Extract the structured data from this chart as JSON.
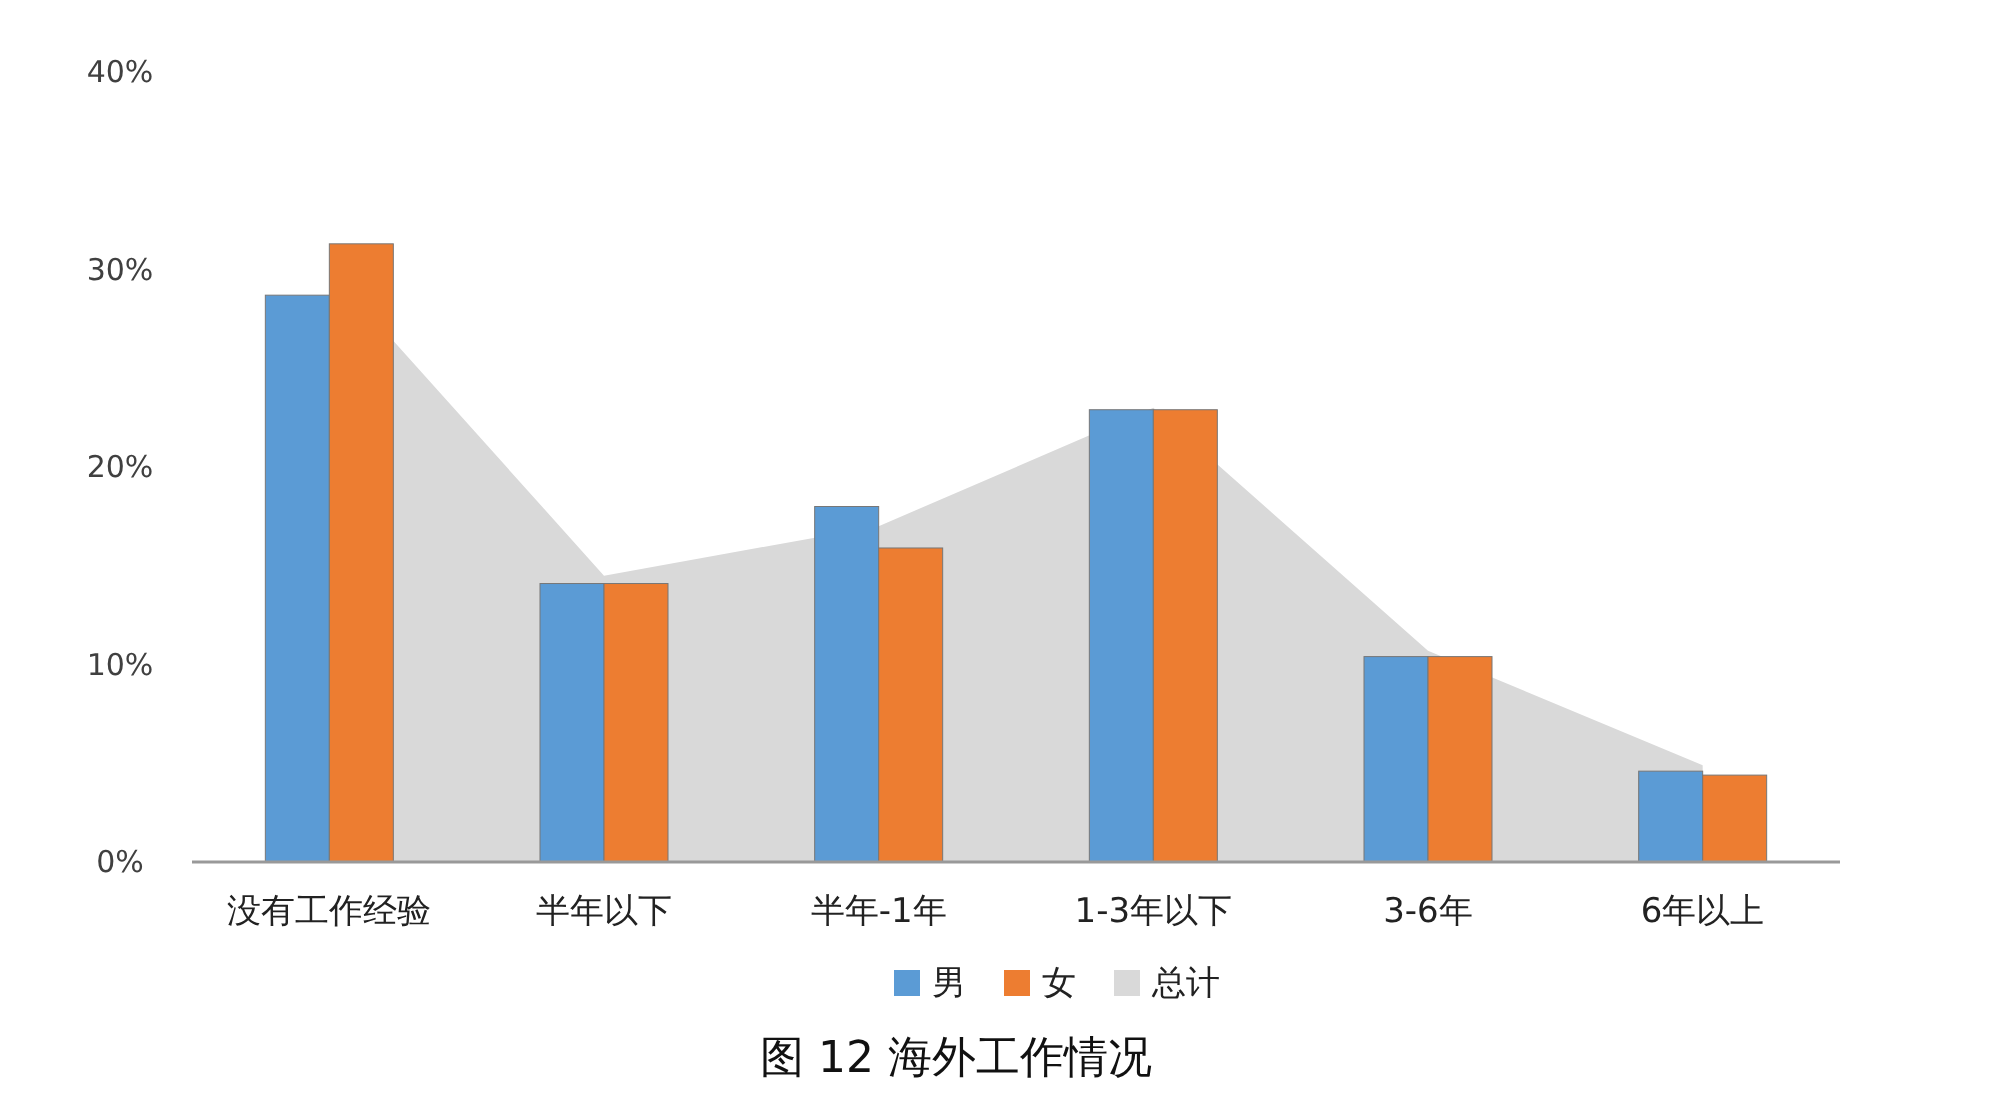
{
  "chart_data": {
    "type": "bar",
    "title": "图 12 海外工作情况",
    "categories": [
      "没有工作经验",
      "半年以下",
      "半年-1年",
      "1-3年以下",
      "3-6年",
      "6年以上"
    ],
    "series": [
      {
        "name": "男",
        "color": "#5b9bd5",
        "values": [
          28.7,
          14.1,
          18.0,
          22.9,
          10.4,
          4.6
        ]
      },
      {
        "name": "女",
        "color": "#ed7d31",
        "values": [
          31.3,
          14.1,
          15.9,
          22.9,
          10.4,
          4.4
        ]
      },
      {
        "name": "总计",
        "type": "area",
        "color": "#d9d9d9",
        "values": [
          30.0,
          14.5,
          17.0,
          23.0,
          10.7,
          4.9
        ]
      }
    ],
    "ylim": [
      0,
      40
    ],
    "yticks": [
      {
        "value": 0,
        "label": "0%"
      },
      {
        "value": 10,
        "label": "10%"
      },
      {
        "value": 20,
        "label": "20%"
      },
      {
        "value": 30,
        "label": "30%"
      },
      {
        "value": 40,
        "label": "40%"
      }
    ],
    "legend": "bottom",
    "grid": false
  }
}
